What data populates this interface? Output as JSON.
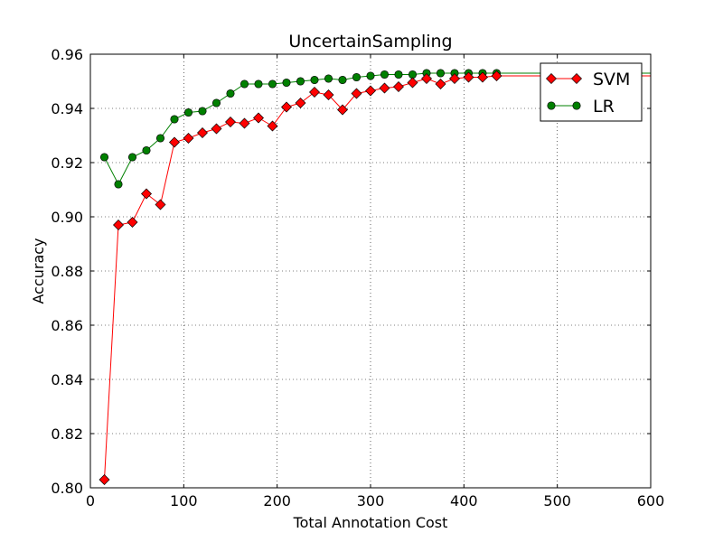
{
  "chart_data": {
    "type": "line",
    "title": "UncertainSampling",
    "xlabel": "Total Annotation Cost",
    "ylabel": "Accuracy",
    "xlim": [
      0,
      600
    ],
    "ylim": [
      0.8,
      0.96
    ],
    "x_ticks": [
      "0",
      "100",
      "200",
      "300",
      "400",
      "500",
      "600"
    ],
    "y_ticks": [
      "0.80",
      "0.82",
      "0.84",
      "0.86",
      "0.88",
      "0.90",
      "0.92",
      "0.94",
      "0.96"
    ],
    "grid": true,
    "legend_position": "top-right",
    "series": [
      {
        "name": "SVM",
        "color": "#ff0000",
        "marker": "diamond",
        "x": [
          15,
          30,
          45,
          60,
          75,
          90,
          105,
          120,
          135,
          150,
          165,
          180,
          195,
          210,
          225,
          240,
          255,
          270,
          285,
          300,
          315,
          330,
          345,
          360,
          375,
          390,
          405,
          420,
          435,
          600
        ],
        "y": [
          0.803,
          0.897,
          0.898,
          0.9085,
          0.9045,
          0.9275,
          0.929,
          0.931,
          0.9325,
          0.935,
          0.9345,
          0.9365,
          0.9335,
          0.9405,
          0.942,
          0.946,
          0.945,
          0.9395,
          0.9455,
          0.9465,
          0.9475,
          0.948,
          0.9495,
          0.951,
          0.949,
          0.951,
          0.9515,
          0.9515,
          0.952,
          0.952
        ]
      },
      {
        "name": "LR",
        "color": "#008000",
        "marker": "circle",
        "x": [
          15,
          30,
          45,
          60,
          75,
          90,
          105,
          120,
          135,
          150,
          165,
          180,
          195,
          210,
          225,
          240,
          255,
          270,
          285,
          300,
          315,
          330,
          345,
          360,
          375,
          390,
          405,
          420,
          435,
          600
        ],
        "y": [
          0.922,
          0.912,
          0.922,
          0.9245,
          0.929,
          0.936,
          0.9385,
          0.939,
          0.942,
          0.9455,
          0.949,
          0.949,
          0.949,
          0.9495,
          0.95,
          0.9505,
          0.951,
          0.9505,
          0.9515,
          0.952,
          0.9525,
          0.9525,
          0.9525,
          0.953,
          0.953,
          0.953,
          0.953,
          0.953,
          0.953,
          0.953
        ]
      }
    ]
  }
}
